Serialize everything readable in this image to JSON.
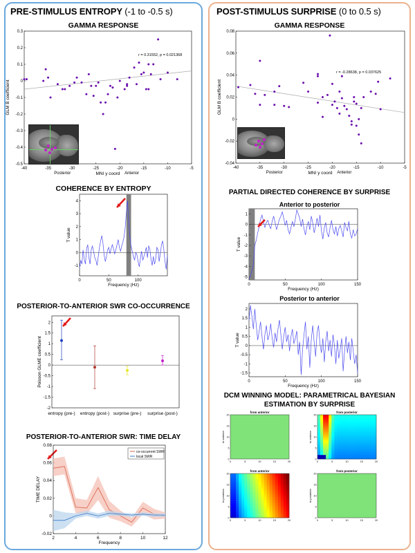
{
  "left_panel": {
    "title": "PRE-STIMULUS ENTROPY",
    "subtitle": "(-1 to -0.5 s)",
    "gamma_title": "GAMMA RESPONSE",
    "coherence_title": "COHERENCE BY ENTROPY",
    "swr_title": "POSTERIOR-TO-ANTERIOR SWR CO-OCCURRENCE",
    "delay_title": "POSTERIOR-TO-ANTERIOR SWR: TIME DELAY"
  },
  "right_panel": {
    "title": "POST-STIMULUS SURPRISE",
    "subtitle": "(0 to 0.5 s)",
    "gamma_title": "GAMMA RESPONSE",
    "pdc_title": "PARTIAL DIRECTED COHERENCE BY SURPRISE",
    "pdc_sub1": "Anterior to posterior",
    "pdc_sub2": "Posterior to anterior",
    "dcm_title_1": "DCM WINNING MODEL: PARAMETRICAL BAYESIAN",
    "dcm_title_2": "ESTIMATION BY SURPRISE",
    "dcm_labels": {
      "from_anterior": "from anterior",
      "from_posterior": "from posterior",
      "to_anterior": "to anterior",
      "to_posterior": "to posterior"
    }
  },
  "colors": {
    "left_border": "#6aa8dc",
    "right_border": "#ecb18c",
    "scatter": "#6a0dad",
    "line": "#4a4af0",
    "highlight": "#808080",
    "arrow": "#e21b1b"
  },
  "chart_data": [
    {
      "id": "gamma-left",
      "type": "scatter",
      "title": "GAMMA RESPONSE",
      "xlabel": "MNI y coord",
      "ylabel": "GLM B coefficient",
      "xlim": [
        -40,
        -5
      ],
      "ylim": [
        -0.5,
        0.3
      ],
      "xticks": [
        -40,
        -35,
        -30,
        -25,
        -20,
        -15,
        -10,
        -5
      ],
      "yticks": [
        -0.5,
        -0.4,
        -0.3,
        -0.2,
        -0.1,
        0,
        0.1,
        0.2,
        0.3
      ],
      "xaxis_notes": [
        "Posterior",
        "Anterior"
      ],
      "annotation": "r = 0.31552, p = 0.021368",
      "fit": {
        "x": [
          -40,
          -5
        ],
        "y": [
          -0.05,
          0.06
        ]
      },
      "points": [
        [
          -40,
          0.01
        ],
        [
          -39.5,
          0.01
        ],
        [
          -35.5,
          0.07
        ],
        [
          -36,
          0
        ],
        [
          -35,
          0.02
        ],
        [
          -34.5,
          -0.1
        ],
        [
          -33,
          -0.02
        ],
        [
          -32,
          -0.05
        ],
        [
          -31.5,
          -0.05
        ],
        [
          -30.5,
          -0.03
        ],
        [
          -29.5,
          -0.01
        ],
        [
          -29,
          0.02
        ],
        [
          -28,
          -0.01
        ],
        [
          -27,
          -0.08
        ],
        [
          -26.5,
          0.04
        ],
        [
          -26,
          -0.03
        ],
        [
          -25.5,
          -0.09
        ],
        [
          -25,
          -0.03
        ],
        [
          -24.5,
          -0.01
        ],
        [
          -24,
          -0.13
        ],
        [
          -23.5,
          -0.2
        ],
        [
          -23,
          -0.13
        ],
        [
          -22.5,
          -0.08
        ],
        [
          -22,
          -0.03
        ],
        [
          -21.5,
          -0.04
        ],
        [
          -21,
          -0.41
        ],
        [
          -20.5,
          -0.1
        ],
        [
          -20,
          0
        ],
        [
          -19,
          -0.05
        ],
        [
          -18.5,
          -0.02
        ],
        [
          -18.5,
          -0.03
        ],
        [
          -18,
          0.02
        ],
        [
          -17,
          0.08
        ],
        [
          -16.5,
          -0.02
        ],
        [
          -16,
          0.11
        ],
        [
          -15.5,
          0.04
        ],
        [
          -15,
          0.05
        ],
        [
          -14.5,
          -0.05
        ],
        [
          -14,
          0.1
        ],
        [
          -14,
          -0.05
        ],
        [
          -13.5,
          0.04
        ],
        [
          -13,
          0.1
        ],
        [
          -12,
          0.25
        ],
        [
          -11.5,
          0.01
        ],
        [
          -10,
          0.05
        ],
        [
          -8,
          0.01
        ]
      ]
    },
    {
      "id": "gamma-right",
      "type": "scatter",
      "title": "GAMMA RESPONSE",
      "xlabel": "MNI y coord",
      "ylabel": "GLM B coefficient",
      "xlim": [
        -40,
        -5
      ],
      "ylim": [
        -0.04,
        0.08
      ],
      "xticks": [
        -40,
        -35,
        -30,
        -25,
        -20,
        -15,
        -10,
        -5
      ],
      "yticks": [
        -0.04,
        -0.02,
        0,
        0.02,
        0.04,
        0.06,
        0.08
      ],
      "xaxis_notes": [
        "Posterior",
        "Anterior"
      ],
      "annotation": "r = -0.28638, p = 0.037625",
      "fit": {
        "x": [
          -40,
          -5
        ],
        "y": [
          0.03,
          0.006
        ]
      },
      "points": [
        [
          -39.5,
          0.029
        ],
        [
          -37,
          0.031
        ],
        [
          -36,
          0.023
        ],
        [
          -35,
          0.053
        ],
        [
          -35,
          0.013
        ],
        [
          -34,
          0.022
        ],
        [
          -32,
          0.025
        ],
        [
          -32,
          0.013
        ],
        [
          -31,
          0.03
        ],
        [
          -30,
          0.012
        ],
        [
          -29,
          0.011
        ],
        [
          -26,
          0.033
        ],
        [
          -25,
          0.025
        ],
        [
          -23,
          0.041
        ],
        [
          -23,
          0.039
        ],
        [
          -23,
          0.015
        ],
        [
          -22,
          0.02
        ],
        [
          -22,
          0.002
        ],
        [
          -21,
          0.022
        ],
        [
          -20.5,
          0.076
        ],
        [
          -20,
          0.032
        ],
        [
          -20,
          0.013
        ],
        [
          -19.5,
          0.016
        ],
        [
          -19,
          0.01
        ],
        [
          -18.5,
          0.025
        ],
        [
          -18.5,
          0.005
        ],
        [
          -18,
          0.039
        ],
        [
          -18,
          0.019
        ],
        [
          -17.5,
          0.012
        ],
        [
          -17,
          0.009
        ],
        [
          -16.5,
          0.003
        ],
        [
          -16,
          -0.002
        ],
        [
          -16,
          -0.005
        ],
        [
          -15.5,
          0.02
        ],
        [
          -15.5,
          0.016
        ],
        [
          -15,
          0.014
        ],
        [
          -15,
          -0.006
        ],
        [
          -14.5,
          0.0
        ],
        [
          -14.5,
          -0.014
        ],
        [
          -14,
          0.01
        ],
        [
          -14,
          -0.022
        ],
        [
          -13.5,
          0.02
        ],
        [
          -12,
          0.025
        ],
        [
          -11,
          0.023
        ],
        [
          -10.5,
          0.034
        ],
        [
          -10,
          0.009
        ],
        [
          -8,
          0.037
        ]
      ]
    },
    {
      "id": "coherence-entropy",
      "type": "line",
      "title": "COHERENCE BY ENTROPY",
      "xlabel": "Frequency (Hz)",
      "ylabel": "T value",
      "xlim": [
        0,
        150
      ],
      "ylim": [
        -1.8,
        4.5
      ],
      "xticks": [
        0,
        50,
        100
      ],
      "yticks": [
        -1,
        0,
        1,
        2,
        3,
        4
      ],
      "highlight": [
        80,
        88
      ],
      "x": [
        0,
        2,
        4,
        6,
        8,
        10,
        12,
        14,
        16,
        18,
        20,
        22,
        24,
        26,
        28,
        30,
        32,
        34,
        36,
        38,
        40,
        42,
        44,
        46,
        48,
        50,
        52,
        54,
        56,
        58,
        60,
        62,
        64,
        66,
        68,
        70,
        72,
        74,
        76,
        78,
        80,
        82,
        84,
        86,
        88,
        90,
        92,
        94,
        96,
        98,
        100,
        102,
        104,
        106,
        108,
        110,
        112,
        114,
        116,
        118,
        120,
        122,
        124,
        126,
        128,
        130,
        132,
        134,
        136,
        138,
        140,
        142,
        144,
        146,
        148,
        150
      ],
      "y": [
        -1.2,
        -0.6,
        -0.9,
        0.2,
        -0.5,
        -0.9,
        0.3,
        0.6,
        -0.4,
        -0.9,
        0.2,
        0.5,
        0.1,
        -0.4,
        -0.6,
        -1.0,
        -0.3,
        0.4,
        0.9,
        1.3,
        0.7,
        -0.2,
        -0.7,
        -0.3,
        0.2,
        0.4,
        -0.1,
        0.3,
        0.6,
        0.3,
        -0.1,
        0.2,
        0.6,
        1.0,
        0.4,
        0.1,
        0.5,
        0.8,
        1.2,
        1.9,
        3.1,
        4.0,
        2.4,
        1.2,
        0.5,
        0.1,
        -0.3,
        -0.6,
        0.0,
        -0.2,
        -0.7,
        -1.1,
        -0.4,
        0.1,
        -0.6,
        -0.3,
        0.0,
        0.4,
        -0.4,
        0.5,
        0.3,
        -0.5,
        -1.0,
        -0.3,
        -0.9,
        -0.5,
        0.4,
        0.2,
        -0.7,
        -0.1,
        0.6,
        0.9,
        0.2,
        -0.7,
        -1.3,
        -0.2
      ]
    },
    {
      "id": "pdc-ant-post",
      "type": "line",
      "title": "Anterior to posterior",
      "xlabel": "Frequency (Hz)",
      "ylabel": "T value",
      "xlim": [
        0,
        150
      ],
      "ylim": [
        -5.3,
        1.5
      ],
      "xticks": [
        0,
        50,
        100,
        150
      ],
      "yticks": [
        -5,
        -4,
        -3,
        -2,
        -1,
        0,
        1
      ],
      "highlight": [
        0,
        8
      ],
      "x": [
        0,
        2,
        4,
        6,
        8,
        10,
        12,
        14,
        16,
        18,
        20,
        22,
        24,
        26,
        28,
        30,
        32,
        34,
        36,
        38,
        40,
        42,
        44,
        46,
        48,
        50,
        52,
        54,
        56,
        58,
        60,
        62,
        64,
        66,
        68,
        70,
        72,
        74,
        76,
        78,
        80,
        82,
        84,
        86,
        88,
        90,
        92,
        94,
        96,
        98,
        100,
        102,
        104,
        106,
        108,
        110,
        112,
        114,
        116,
        118,
        120,
        122,
        124,
        126,
        128,
        130,
        132,
        134,
        136,
        138,
        140,
        142,
        144,
        146,
        148,
        150
      ],
      "y": [
        -5.2,
        -4.9,
        -4.4,
        -3.8,
        -2.0,
        -1.5,
        -0.8,
        -0.2,
        0.5,
        0.9,
        0.3,
        -0.3,
        0.2,
        0.4,
        -0.1,
        -0.4,
        0.3,
        0.8,
        0.2,
        -0.5,
        0.0,
        0.5,
        0.8,
        1.2,
        0.6,
        -0.1,
        0.4,
        -0.5,
        -0.9,
        -0.3,
        0.3,
        -0.2,
        0.5,
        1.4,
        1.0,
        0.6,
        -0.2,
        0.5,
        -0.4,
        -1.0,
        -0.2,
        0.3,
        -0.5,
        0.8,
        0.2,
        -0.8,
        -0.2,
        0.6,
        -0.2,
        0.9,
        -0.6,
        -1.4,
        -0.3,
        0.2,
        -0.8,
        -1.2,
        -0.3,
        0.4,
        -0.5,
        -0.9,
        -0.2,
        -1.1,
        -0.4,
        -0.1,
        -0.6,
        -1.2,
        0.2,
        -0.3,
        -0.6,
        0.3,
        -0.9,
        -1.3,
        -0.5,
        -1.1,
        -0.9,
        -0.4
      ]
    },
    {
      "id": "pdc-post-ant",
      "type": "line",
      "title": "Posterior to anterior",
      "xlabel": "Frequency (Hz)",
      "ylabel": "T value",
      "xlim": [
        0,
        150
      ],
      "ylim": [
        -1.7,
        2.3
      ],
      "xticks": [
        0,
        50,
        100,
        150
      ],
      "yticks": [
        -1.5,
        -1,
        -0.5,
        0,
        0.5,
        1,
        1.5,
        2
      ],
      "x": [
        0,
        2,
        4,
        6,
        8,
        10,
        12,
        14,
        16,
        18,
        20,
        22,
        24,
        26,
        28,
        30,
        32,
        34,
        36,
        38,
        40,
        42,
        44,
        46,
        48,
        50,
        52,
        54,
        56,
        58,
        60,
        62,
        64,
        66,
        68,
        70,
        72,
        74,
        76,
        78,
        80,
        82,
        84,
        86,
        88,
        90,
        92,
        94,
        96,
        98,
        100,
        102,
        104,
        106,
        108,
        110,
        112,
        114,
        116,
        118,
        120,
        122,
        124,
        126,
        128,
        130,
        132,
        134,
        136,
        138,
        140,
        142,
        144,
        146,
        148,
        150
      ],
      "y": [
        1.4,
        2.2,
        1.6,
        0.9,
        2.0,
        1.1,
        0.3,
        0.8,
        1.3,
        0.5,
        -0.2,
        0.6,
        1.1,
        0.3,
        0.6,
        1.2,
        0.4,
        -0.1,
        0.7,
        0.2,
        0.9,
        1.4,
        0.6,
        -0.2,
        0.5,
        1.0,
        0.2,
        0.6,
        -0.3,
        0.5,
        0.9,
        0.1,
        0.4,
        0.8,
        -0.5,
        0.2,
        -1.6,
        -0.2,
        0.6,
        1.3,
        -0.2,
        0.5,
        -1.2,
        0.3,
        1.1,
        0.2,
        -0.6,
        0.7,
        1.1,
        0.1,
        -0.4,
        0.4,
        -0.9,
        0.2,
        0.8,
        -0.3,
        0.3,
        -0.6,
        0.6,
        0.0,
        -1.0,
        0.3,
        -0.7,
        -0.2,
        0.4,
        -1.4,
        -0.3,
        0.5,
        -0.4,
        0.2,
        -0.8,
        0.4,
        -0.3,
        -1.0,
        -0.5,
        -1.5
      ]
    },
    {
      "id": "swr-cooccurrence",
      "type": "scatter",
      "title": "POSTERIOR-TO-ANTERIOR SWR CO-OCCURRENCE",
      "xlabel": "",
      "ylabel": "Poisson GLME coefficient",
      "ylim": [
        -2,
        2.3
      ],
      "yticks": [
        -2,
        -1.5,
        -1,
        -0.5,
        0,
        0.5,
        1,
        1.5,
        2
      ],
      "categories": [
        "entropy (pre-)",
        "entropy (post-)",
        "surprise (pre-)",
        "surprise (post-)"
      ],
      "values": [
        1.15,
        -0.1,
        -0.25,
        0.2
      ],
      "lower": [
        0.25,
        -1.1,
        -0.45,
        0.0
      ],
      "upper": [
        2.1,
        0.9,
        -0.05,
        0.45
      ],
      "colors": [
        "#1f3fbf",
        "#b03a2e",
        "#e6e62a",
        "#c21fc8"
      ]
    },
    {
      "id": "swr-delay",
      "type": "line",
      "title": "POSTERIOR-TO-ANTERIOR SWR: TIME DELAY",
      "xlabel": "Frequency",
      "ylabel": "TIME DELAY",
      "xlim": [
        2,
        12
      ],
      "ylim": [
        -0.02,
        0.08
      ],
      "xticks": [
        2,
        4,
        6,
        8,
        10,
        12
      ],
      "yticks": [
        -0.02,
        0,
        0.02,
        0.04,
        0.06,
        0.08
      ],
      "legend": [
        "co-occurrent SWR",
        "local SWR"
      ],
      "series": [
        {
          "name": "co-occurrent SWR",
          "color": "#d9604a",
          "band": "#f4c0b4",
          "x": [
            2,
            3,
            4,
            5,
            6,
            7,
            8,
            9,
            10,
            11,
            12
          ],
          "y": [
            0.054,
            0.056,
            0.01,
            0.009,
            0.032,
            0.007,
            0.0,
            -0.007,
            0.009,
            0.002,
            0.0
          ],
          "lo": [
            0.045,
            0.047,
            0.003,
            0.002,
            0.018,
            -0.002,
            -0.006,
            -0.012,
            0.002,
            -0.004,
            -0.003
          ],
          "hi": [
            0.065,
            0.067,
            0.02,
            0.018,
            0.045,
            0.017,
            0.006,
            -0.002,
            0.016,
            0.008,
            0.004
          ]
        },
        {
          "name": "local SWR",
          "color": "#3a7ac8",
          "band": "#bcd6ee",
          "x": [
            2,
            3,
            4,
            5,
            6,
            7,
            8,
            9,
            10,
            11,
            12
          ],
          "y": [
            -0.005,
            -0.005,
            0.0,
            0.003,
            0.0,
            0.003,
            0.002,
            0.001,
            0.002,
            0.001,
            0.001
          ],
          "lo": [
            -0.017,
            -0.014,
            -0.003,
            0.0,
            -0.003,
            0.0,
            0.0,
            -0.001,
            0.0,
            -0.001,
            -0.001
          ],
          "hi": [
            0.007,
            0.004,
            0.003,
            0.006,
            0.003,
            0.006,
            0.004,
            0.003,
            0.004,
            0.003,
            0.003
          ]
        }
      ]
    },
    {
      "id": "dcm-heatmaps",
      "type": "heatmap",
      "title": "DCM WINNING MODEL: PARAMETRICAL BAYESIAN ESTIMATION BY SURPRISE",
      "ticks": [
        0,
        5,
        10,
        15,
        20
      ],
      "panels": [
        {
          "title": "from anterior",
          "ylabel": "to anterior",
          "pattern": "flat"
        },
        {
          "title": "from posterior",
          "ylabel": "to anterior",
          "pattern": "ridge"
        },
        {
          "title": "from anterior",
          "ylabel": "to posterior",
          "pattern": "diag"
        },
        {
          "title": "from posterior",
          "ylabel": "to posterior",
          "pattern": "flat"
        }
      ]
    }
  ]
}
